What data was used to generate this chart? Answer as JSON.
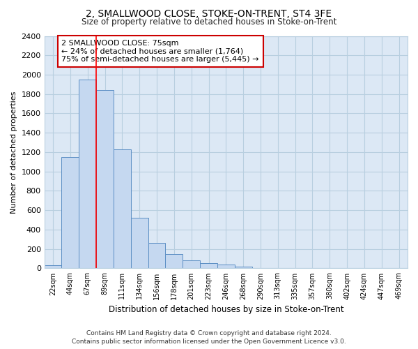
{
  "title": "2, SMALLWOOD CLOSE, STOKE-ON-TRENT, ST4 3FE",
  "subtitle": "Size of property relative to detached houses in Stoke-on-Trent",
  "xlabel": "Distribution of detached houses by size in Stoke-on-Trent",
  "ylabel": "Number of detached properties",
  "bar_labels": [
    "22sqm",
    "44sqm",
    "67sqm",
    "89sqm",
    "111sqm",
    "134sqm",
    "156sqm",
    "178sqm",
    "201sqm",
    "223sqm",
    "246sqm",
    "268sqm",
    "290sqm",
    "313sqm",
    "335sqm",
    "357sqm",
    "380sqm",
    "402sqm",
    "424sqm",
    "447sqm",
    "469sqm"
  ],
  "bar_values": [
    30,
    1150,
    1950,
    1840,
    1225,
    520,
    265,
    145,
    80,
    55,
    40,
    20,
    5,
    3,
    2,
    2,
    2,
    2,
    2,
    2,
    2
  ],
  "bar_color": "#c5d8f0",
  "bar_edge_color": "#5b8ec4",
  "background_color": "#ffffff",
  "plot_bg_color": "#dce8f5",
  "grid_color": "#b8cfe0",
  "red_line_x": 2.5,
  "annotation_text": "2 SMALLWOOD CLOSE: 75sqm\n← 24% of detached houses are smaller (1,764)\n75% of semi-detached houses are larger (5,445) →",
  "annotation_box_color": "#ffffff",
  "annotation_box_edge_color": "#cc0000",
  "footer_line1": "Contains HM Land Registry data © Crown copyright and database right 2024.",
  "footer_line2": "Contains public sector information licensed under the Open Government Licence v3.0.",
  "ylim": [
    0,
    2400
  ],
  "yticks": [
    0,
    200,
    400,
    600,
    800,
    1000,
    1200,
    1400,
    1600,
    1800,
    2000,
    2200,
    2400
  ]
}
